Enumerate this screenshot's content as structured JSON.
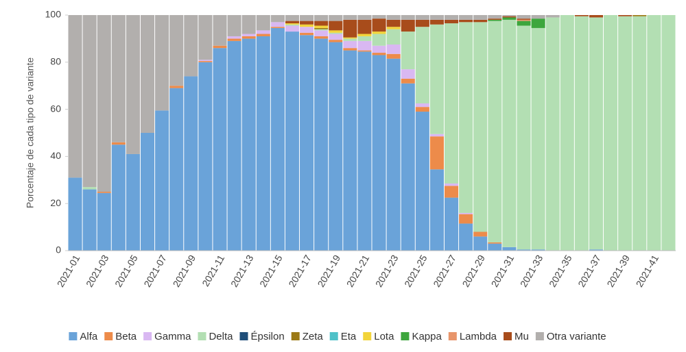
{
  "chart_data": {
    "type": "stacked_bar",
    "y_label": "Porcentaje de cada tipo de variante",
    "categories": [
      "2021-01",
      null,
      "2021-03",
      null,
      "2021-05",
      null,
      "2021-07",
      null,
      "2021-09",
      null,
      "2021-11",
      null,
      "2021-13",
      null,
      "2021-15",
      null,
      "2021-17",
      null,
      "2021-19",
      null,
      "2021-21",
      null,
      "2021-23",
      null,
      "2021-25",
      null,
      "2021-27",
      null,
      "2021-29",
      null,
      "2021-31",
      null,
      "2021-33",
      null,
      "2021-35",
      null,
      "2021-37",
      null,
      "2021-39",
      null,
      "2021-41",
      null
    ],
    "ylim": [
      0,
      100
    ],
    "yticks": [
      0,
      20,
      40,
      60,
      80,
      100
    ],
    "series": [
      {
        "name": "Alfa",
        "color": "#6aa3d9",
        "values": [
          31,
          26,
          24.5,
          45,
          41,
          50,
          59.5,
          69,
          74,
          80,
          86,
          89,
          90,
          91,
          94.5,
          93,
          91.5,
          90,
          88.5,
          85,
          84.5,
          83,
          81.5,
          71,
          59,
          34.5,
          22.5,
          11.5,
          6,
          3,
          1.5,
          0.5,
          0.5,
          0,
          0,
          0,
          0.5,
          0,
          0,
          0,
          0,
          0
        ]
      },
      {
        "name": "Beta",
        "color": "#ed8b4a",
        "values": [
          0,
          0,
          0.5,
          1,
          0,
          0,
          0,
          1,
          0,
          0.5,
          1,
          1,
          1,
          1,
          0.5,
          0,
          1,
          1,
          1,
          1,
          0.5,
          1,
          2,
          2,
          2,
          14,
          5,
          4,
          2,
          0.5,
          0,
          0,
          0,
          0,
          0,
          0,
          0,
          0,
          0,
          0,
          0,
          0
        ]
      },
      {
        "name": "Gamma",
        "color": "#d9b8f2",
        "values": [
          0,
          0,
          0,
          0,
          0,
          0,
          0,
          0,
          0,
          0.5,
          0,
          1,
          1,
          1.5,
          2,
          2.5,
          2.5,
          2.5,
          2.5,
          3,
          4,
          3,
          4,
          4,
          1.5,
          1,
          1,
          0.5,
          0,
          0,
          0,
          0,
          0,
          0,
          0,
          0,
          0,
          0,
          0,
          0,
          0,
          0
        ]
      },
      {
        "name": "Delta",
        "color": "#b3dfb3",
        "values": [
          0,
          1,
          0,
          0,
          0,
          0,
          0,
          0,
          0,
          0,
          0,
          0,
          0,
          0,
          0,
          0.5,
          0,
          0.5,
          0.5,
          1,
          2,
          5,
          6.5,
          16,
          32.5,
          46.5,
          68,
          81,
          89,
          94,
          96.5,
          95,
          94,
          99,
          100,
          99.5,
          98.5,
          100,
          99.5,
          99.5,
          100,
          100
        ]
      },
      {
        "name": "Épsilon",
        "color": "#1f4e79",
        "values": [
          0,
          0,
          0,
          0,
          0,
          0,
          0,
          0,
          0,
          0,
          0,
          0,
          0,
          0,
          0,
          0,
          0,
          0,
          0,
          0,
          0,
          0,
          0,
          0,
          0,
          0,
          0,
          0,
          0,
          0,
          0,
          0,
          0,
          0,
          0,
          0,
          0,
          0,
          0,
          0,
          0,
          0
        ]
      },
      {
        "name": "Zeta",
        "color": "#9c7a16",
        "values": [
          0,
          0,
          0,
          0,
          0,
          0,
          0,
          0,
          0,
          0,
          0,
          0,
          0,
          0,
          0,
          0,
          0,
          0.5,
          0,
          0,
          0,
          0,
          0,
          0,
          0,
          0,
          0,
          0,
          0,
          0,
          0,
          0,
          0,
          0,
          0,
          0,
          0,
          0,
          0,
          0.5,
          0,
          0
        ]
      },
      {
        "name": "Eta",
        "color": "#4fc1c8",
        "values": [
          0,
          0,
          0,
          0,
          0,
          0,
          0,
          0,
          0,
          0,
          0,
          0,
          0,
          0,
          0,
          0,
          0,
          0,
          0,
          0,
          0,
          0,
          0,
          0,
          0,
          0,
          0,
          0,
          0,
          0,
          0,
          0,
          0,
          0,
          0,
          0,
          0,
          0,
          0,
          0,
          0,
          0
        ]
      },
      {
        "name": "Lota",
        "color": "#f2d43a",
        "values": [
          0,
          0,
          0,
          0,
          0,
          0,
          0,
          0,
          0,
          0,
          0,
          0,
          0,
          0,
          0,
          0.5,
          1,
          1,
          1,
          0.5,
          1,
          1,
          1,
          0,
          0,
          0,
          0,
          0,
          0,
          0,
          0,
          0,
          0,
          0,
          0,
          0,
          0,
          0,
          0,
          0,
          0,
          0
        ]
      },
      {
        "name": "Kappa",
        "color": "#3da63d",
        "values": [
          0,
          0,
          0,
          0,
          0,
          0,
          0,
          0,
          0,
          0,
          0,
          0,
          0,
          0,
          0,
          0,
          0,
          0,
          0,
          0,
          0,
          0,
          0,
          0,
          0,
          0,
          0,
          0,
          0,
          0.5,
          1,
          2,
          4,
          0,
          0,
          0,
          0,
          0,
          0,
          0,
          0,
          0
        ]
      },
      {
        "name": "Lambda",
        "color": "#e8956b",
        "values": [
          0,
          0,
          0,
          0,
          0,
          0,
          0,
          0,
          0,
          0,
          0,
          0,
          0,
          0,
          0,
          0,
          0,
          0,
          0,
          0,
          0,
          0,
          0,
          0,
          0,
          0,
          0,
          0,
          0,
          0,
          0,
          0.5,
          0,
          0,
          0,
          0,
          0,
          0,
          0,
          0,
          0,
          0
        ]
      },
      {
        "name": "Mu",
        "color": "#a84c1b",
        "values": [
          0,
          0,
          0,
          0,
          0,
          0,
          0,
          0,
          0,
          0,
          0,
          0,
          0,
          0,
          0,
          1,
          1.5,
          2,
          4,
          7.5,
          6,
          5.5,
          3,
          5,
          3,
          2,
          1.5,
          1,
          1,
          0.5,
          0.5,
          0.5,
          0,
          0,
          0,
          0.5,
          1,
          0,
          0.5,
          0,
          0,
          0
        ]
      },
      {
        "name": "Otra variante",
        "color": "#b2afad",
        "values": [
          69,
          73,
          75,
          54,
          59,
          50,
          40.5,
          30,
          26,
          19,
          13,
          9,
          8,
          6.5,
          3,
          2.5,
          2.5,
          2.5,
          2.5,
          2,
          2,
          1.5,
          2,
          2,
          2,
          2,
          2,
          2,
          2,
          1.5,
          0.5,
          1.5,
          1.5,
          1,
          0,
          0,
          0,
          0,
          0,
          0,
          0,
          0
        ]
      }
    ]
  }
}
